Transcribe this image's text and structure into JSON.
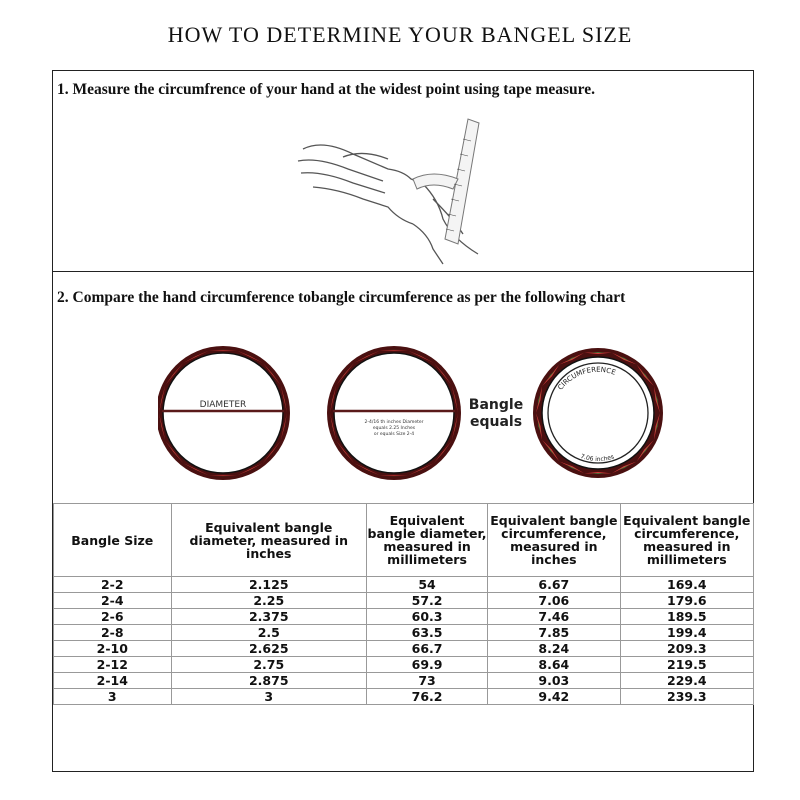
{
  "title": "HOW TO DETERMINE YOUR BANGEL SIZE",
  "step1": "1. Measure the circumfrence of your hand at the widest point using tape measure.",
  "step2": "2. Compare the hand circumference tobangle circumference as per the following chart",
  "bangles": {
    "diameter_label": "DIAMETER",
    "note_line1": "2-4/16 th inches Diameter",
    "note_line2": "equals 2.25 Inches",
    "note_line3": "or equals Size 2-4",
    "equals_line1": "Bangle",
    "equals_line2": "equals",
    "circumference_label": "CIRCUMFERENCE",
    "circumference_value": "7.06 inches",
    "colors": {
      "red": "#d63b3b",
      "green": "#3e7d3a",
      "dark": "#4a1010"
    }
  },
  "table": {
    "headers": [
      "Bangle Size",
      "Equivalent bangle diameter, measured in inches",
      "Equivalent bangle diameter, measured in millimeters",
      "Equivalent bangle circumference, measured in inches",
      "Equivalent bangle circumference, measured in millimeters"
    ],
    "rows": [
      [
        "2-2",
        "2.125",
        "54",
        "6.67",
        "169.4"
      ],
      [
        "2-4",
        "2.25",
        "57.2",
        "7.06",
        "179.6"
      ],
      [
        "2-6",
        "2.375",
        "60.3",
        "7.46",
        "189.5"
      ],
      [
        "2-8",
        "2.5",
        "63.5",
        "7.85",
        "199.4"
      ],
      [
        "2-10",
        "2.625",
        "66.7",
        "8.24",
        "209.3"
      ],
      [
        "2-12",
        "2.75",
        "69.9",
        "8.64",
        "219.5"
      ],
      [
        "2-14",
        "2.875",
        "73",
        "9.03",
        "229.4"
      ],
      [
        "3",
        "3",
        "76.2",
        "9.42",
        "239.3"
      ]
    ]
  }
}
